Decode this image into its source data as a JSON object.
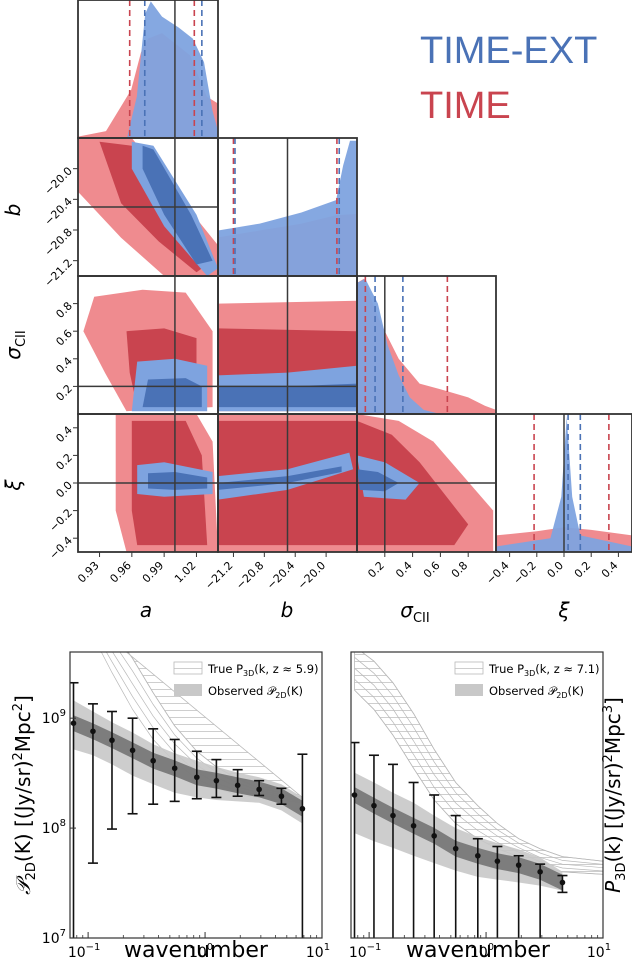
{
  "colors": {
    "time_ext": "#4a72b6",
    "time_ext_light": "#7ea3df",
    "time": "#c9444f",
    "time_light": "#ef8b8f",
    "truth_line": "#3a3a3a",
    "obs_dark": "#6e6e6e",
    "obs_band": "#c8c8c8",
    "true_hatch": "#b9b9b9",
    "error_bar": "#111111"
  },
  "corner": {
    "legend": [
      "TIME-EXT",
      "TIME"
    ],
    "params": [
      {
        "key": "a",
        "label": "a",
        "ticks": [
          "0.93",
          "0.96",
          "0.99",
          "1.02"
        ],
        "range": [
          0.91,
          1.04
        ],
        "truth": 1.0
      },
      {
        "key": "b",
        "label": "b",
        "ticks": [
          "−21.2",
          "−20.8",
          "−20.4",
          "−20.0"
        ],
        "range": [
          -21.4,
          -19.6
        ],
        "truth": -20.5
      },
      {
        "key": "sigma",
        "label": "σ",
        "label_sub": "CII",
        "ticks": [
          "0.2",
          "0.4",
          "0.6",
          "0.8"
        ],
        "range": [
          0.0,
          1.0
        ],
        "truth": 0.2
      },
      {
        "key": "xi",
        "label": "ξ",
        "ticks": [
          "−0.4",
          "−0.2",
          "0.0",
          "0.2",
          "0.4"
        ],
        "range": [
          -0.5,
          0.5
        ],
        "truth": 0.0
      }
    ],
    "quantiles": {
      "a": {
        "time_ext": [
          0.972,
          1.025
        ],
        "time": [
          0.958,
          1.018
        ]
      },
      "b": {
        "time_ext": [
          -21.18,
          -19.83
        ],
        "time": [
          -21.2,
          -19.86
        ]
      },
      "sigma": {
        "time_ext": [
          0.13,
          0.33
        ],
        "time": [
          0.06,
          0.65
        ]
      },
      "xi": {
        "time_ext": [
          0.03,
          0.12
        ],
        "time": [
          -0.22,
          0.33
        ]
      }
    }
  },
  "chart_data": [
    {
      "type": "line",
      "xlabel": "wavenumber",
      "ylabel": "𝒫₂D(K) [(Jy/sr)²Mpc²]",
      "ylabel_main": "𝒫",
      "ylabel_sub": "2D",
      "ylabel_rest": "(K) [(Jy/sr)",
      "ylabel_sup1": "2",
      "ylabel_rest2": "Mpc",
      "ylabel_sup2": "2",
      "ylabel_end": "]",
      "xscale": "log",
      "yscale": "log",
      "xlim": [
        0.07,
        10
      ],
      "ylim": [
        10000000.0,
        4000000000.0
      ],
      "xticks": [
        {
          "v": 0.1,
          "base": "10",
          "exp": "−1"
        },
        {
          "v": 1,
          "base": "10",
          "exp": "0"
        },
        {
          "v": 10,
          "base": "10",
          "exp": "1"
        }
      ],
      "yticks": [
        {
          "v": 10000000.0,
          "base": "10",
          "exp": "7"
        },
        {
          "v": 100000000.0,
          "base": "10",
          "exp": "8"
        },
        {
          "v": 1000000000.0,
          "base": "10",
          "exp": "9"
        }
      ],
      "legend": [
        {
          "label": "True P",
          "sub": "3D",
          "rest": "(k, z ≈ 5.9)"
        },
        {
          "label": "Observed 𝒫",
          "sub": "2D",
          "rest": "(K)"
        }
      ],
      "x": [
        0.075,
        0.11,
        0.16,
        0.24,
        0.36,
        0.55,
        0.85,
        1.25,
        1.9,
        2.9,
        4.5,
        6.8
      ],
      "y": [
        900000000.0,
        760000000.0,
        630000000.0,
        510000000.0,
        410000000.0,
        350000000.0,
        290000000.0,
        270000000.0,
        245000000.0,
        225000000.0,
        195000000.0,
        150000000.0
      ],
      "err_low": [
        10000000.0,
        48000000.0,
        98000000.0,
        135000000.0,
        165000000.0,
        175000000.0,
        185000000.0,
        190000000.0,
        195000000.0,
        198000000.0,
        165000000.0,
        10000000.0
      ],
      "err_high": [
        2100000000.0,
        1350000000.0,
        1150000000.0,
        1000000000.0,
        800000000.0,
        640000000.0,
        500000000.0,
        420000000.0,
        340000000.0,
        270000000.0,
        230000000.0,
        470000000.0
      ],
      "band_low": [
        520000000.0,
        460000000.0,
        380000000.0,
        300000000.0,
        250000000.0,
        210000000.0,
        190000000.0,
        180000000.0,
        175000000.0,
        170000000.0,
        145000000.0,
        110000000.0
      ],
      "band_high": [
        1450000000.0,
        1150000000.0,
        920000000.0,
        740000000.0,
        580000000.0,
        480000000.0,
        410000000.0,
        360000000.0,
        320000000.0,
        290000000.0,
        250000000.0,
        190000000.0
      ],
      "true_low": [
        10000000000.0,
        5600000000.0,
        2600000000.0,
        1200000000.0,
        640000000.0,
        400000000.0,
        280000000.0,
        230000000.0,
        200000000.0,
        190000000.0,
        180000000.0,
        170000000.0
      ],
      "true_high": [
        10000000000.0,
        10000000000.0,
        6400000000.0,
        3500000000.0,
        1700000000.0,
        850000000.0,
        500000000.0,
        360000000.0,
        280000000.0,
        230000000.0,
        210000000.0,
        190000000.0
      ]
    },
    {
      "type": "line",
      "xlabel": "wavenumber",
      "ylabel_main": "P",
      "ylabel_sub": "3D",
      "ylabel_rest": "(k) [(Jy/sr)",
      "ylabel_sup1": "2",
      "ylabel_rest2": "Mpc",
      "ylabel_sup2": "3",
      "ylabel_end": "]",
      "xscale": "log",
      "yscale": "log",
      "xlim": [
        0.07,
        10
      ],
      "ylim": [
        10000000.0,
        4000000000.0
      ],
      "xticks": [
        {
          "v": 0.1,
          "base": "10",
          "exp": "−1"
        },
        {
          "v": 1,
          "base": "10",
          "exp": "0"
        },
        {
          "v": 10,
          "base": "10",
          "exp": "1"
        }
      ],
      "legend": [
        {
          "label": "True P",
          "sub": "3D",
          "rest": "(k, z ≈ 7.1)"
        },
        {
          "label": "Observed 𝒫",
          "sub": "2D",
          "rest": "(K)"
        }
      ],
      "x": [
        0.075,
        0.11,
        0.16,
        0.24,
        0.36,
        0.55,
        0.85,
        1.25,
        1.9,
        2.9,
        4.5
      ],
      "y": [
        200000000.0,
        160000000.0,
        130000000.0,
        105000000.0,
        85000000.0,
        65000000.0,
        56000000.0,
        50000000.0,
        46000000.0,
        40000000.0,
        32000000.0
      ],
      "err_low": [
        10000000.0,
        10000000.0,
        10000000.0,
        10000000.0,
        10000000.0,
        10000000.0,
        10000000.0,
        10000000.0,
        10000000.0,
        10000000.0,
        26000000.0
      ],
      "err_high": [
        600000000.0,
        460000000.0,
        380000000.0,
        260000000.0,
        200000000.0,
        130000000.0,
        80000000.0,
        68000000.0,
        56000000.0,
        47000000.0,
        37000000.0
      ],
      "band_low": [
        90000000.0,
        76000000.0,
        66000000.0,
        56000000.0,
        48000000.0,
        41000000.0,
        36000000.0,
        34000000.0,
        32000000.0,
        30000000.0,
        27000000.0
      ],
      "band_high": [
        320000000.0,
        260000000.0,
        210000000.0,
        170000000.0,
        130000000.0,
        100000000.0,
        83000000.0,
        73000000.0,
        64000000.0,
        54000000.0,
        40000000.0
      ],
      "true_low": [
        1800000000.0,
        1200000000.0,
        700000000.0,
        350000000.0,
        180000000.0,
        110000000.0,
        80000000.0,
        65000000.0,
        55000000.0,
        45000000.0,
        40000000.0,
        38000000.0
      ],
      "true_high": [
        4500000000.0,
        3300000000.0,
        2100000000.0,
        1100000000.0,
        520000000.0,
        260000000.0,
        160000000.0,
        110000000.0,
        80000000.0,
        65000000.0,
        55000000.0,
        50000000.0
      ],
      "true_x": [
        0.075,
        0.11,
        0.16,
        0.24,
        0.36,
        0.55,
        0.85,
        1.25,
        1.9,
        2.9,
        4.5,
        10
      ]
    }
  ]
}
